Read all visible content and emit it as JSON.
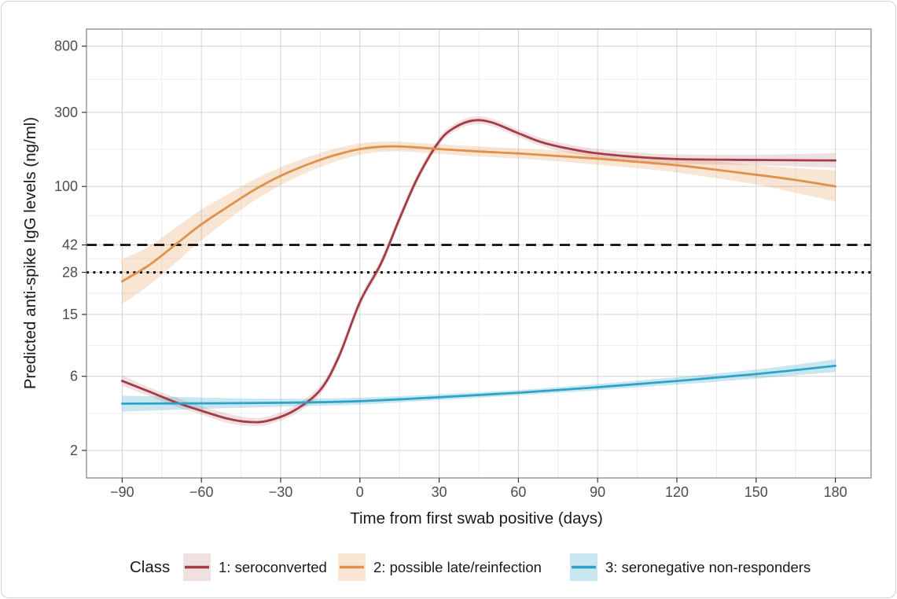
{
  "chart_data": {
    "type": "line",
    "title": "",
    "xlabel": "Time from first swab positive (days)",
    "ylabel": "Predicted anti-spike IgG levels (ng/ml)",
    "x_scale": "linear",
    "y_scale": "log10",
    "xlim": [
      -103.5,
      193.5
    ],
    "ylim": [
      1.33,
      1030
    ],
    "grid": true,
    "x_ticks": {
      "values": [
        -90,
        -60,
        -30,
        0,
        30,
        60,
        90,
        120,
        150,
        180
      ],
      "labels": [
        "−90",
        "−60",
        "−30",
        "0",
        "30",
        "60",
        "90",
        "120",
        "150",
        "180"
      ]
    },
    "x_minor": [
      -75,
      -45,
      -15,
      15,
      45,
      75,
      105,
      135,
      165
    ],
    "y_ticks": {
      "values": [
        2,
        6,
        15,
        28,
        42,
        100,
        300,
        800
      ],
      "labels": [
        "2",
        "6",
        "15",
        "28",
        "42",
        "100",
        "300",
        "800"
      ]
    },
    "y_minor": [
      3.464,
      9.487,
      20.494,
      34.293,
      64.807,
      173.205,
      489.898
    ],
    "reference_lines": [
      {
        "y": 42,
        "style": "dashed",
        "color": "#000000"
      },
      {
        "y": 28,
        "style": "dotted",
        "color": "#000000"
      }
    ],
    "legend": {
      "title": "Class",
      "position": "bottom"
    },
    "series": [
      {
        "name": "1: seroconverted",
        "color": "#A33C45",
        "band_opacity": 0.16,
        "x": [
          -90,
          -80,
          -70,
          -60,
          -50,
          -42,
          -35,
          -25,
          -15,
          -8,
          0,
          8,
          15,
          22,
          30,
          36,
          43,
          50,
          60,
          70,
          85,
          100,
          120,
          150,
          180
        ],
        "y": [
          5.6,
          4.8,
          4.1,
          3.6,
          3.2,
          3.05,
          3.1,
          3.6,
          4.9,
          8,
          18,
          32,
          62,
          115,
          195,
          240,
          266,
          258,
          220,
          190,
          168,
          157,
          150,
          148,
          147
        ],
        "lo": [
          5.2,
          4.5,
          3.85,
          3.4,
          3.0,
          2.88,
          2.93,
          3.4,
          4.6,
          7.5,
          16.8,
          30,
          58,
          108,
          184,
          227,
          251,
          244,
          208,
          179,
          158,
          147,
          140,
          137,
          132
        ],
        "hi": [
          6.1,
          5.1,
          4.4,
          3.85,
          3.45,
          3.25,
          3.3,
          3.85,
          5.25,
          8.6,
          19.3,
          34.3,
          66.5,
          123,
          207,
          254,
          282,
          273,
          233,
          202,
          179,
          168,
          161,
          160,
          164
        ]
      },
      {
        "name": "2: possible late/reinfection",
        "color": "#E0914C",
        "band_opacity": 0.24,
        "x": [
          -90,
          -80,
          -70,
          -60,
          -50,
          -40,
          -30,
          -20,
          -10,
          0,
          10,
          20,
          30,
          45,
          60,
          75,
          90,
          105,
          120,
          135,
          150,
          165,
          180
        ],
        "y": [
          24.5,
          31,
          42,
          57,
          74,
          95,
          117,
          138,
          158,
          174,
          181,
          179,
          174,
          168,
          163,
          157,
          151,
          144,
          137,
          128,
          119,
          110,
          100
        ],
        "lo": [
          17.5,
          23,
          32,
          45,
          61,
          81,
          102,
          123,
          143,
          160,
          168,
          167,
          162,
          156,
          151,
          145,
          138,
          131,
          123,
          113,
          103,
          91,
          80
        ],
        "hi": [
          34,
          41,
          54,
          71,
          89,
          111,
          133,
          154,
          174,
          189,
          195,
          192,
          187,
          181,
          176,
          170,
          165,
          158,
          152,
          145,
          137,
          131,
          127
        ]
      },
      {
        "name": "3: seronegative non-responders",
        "color": "#2FA3C6",
        "band_opacity": 0.26,
        "x": [
          -90,
          -60,
          -30,
          0,
          30,
          60,
          90,
          120,
          150,
          180
        ],
        "y": [
          4.0,
          4.02,
          4.05,
          4.15,
          4.4,
          4.7,
          5.1,
          5.6,
          6.2,
          7.0
        ],
        "lo": [
          3.55,
          3.7,
          3.82,
          3.95,
          4.22,
          4.52,
          4.88,
          5.3,
          5.8,
          6.4
        ],
        "hi": [
          4.5,
          4.38,
          4.3,
          4.37,
          4.6,
          4.9,
          5.35,
          5.92,
          6.63,
          7.7
        ]
      }
    ]
  },
  "colors": {
    "panel_border": "#8a8a8a",
    "grid_major": "#d6d6d6",
    "grid_minor": "#e9e9e9",
    "tick_mark": "#333333",
    "tick_label": "#4d4d4d",
    "axis_title": "#1a1a1a"
  }
}
